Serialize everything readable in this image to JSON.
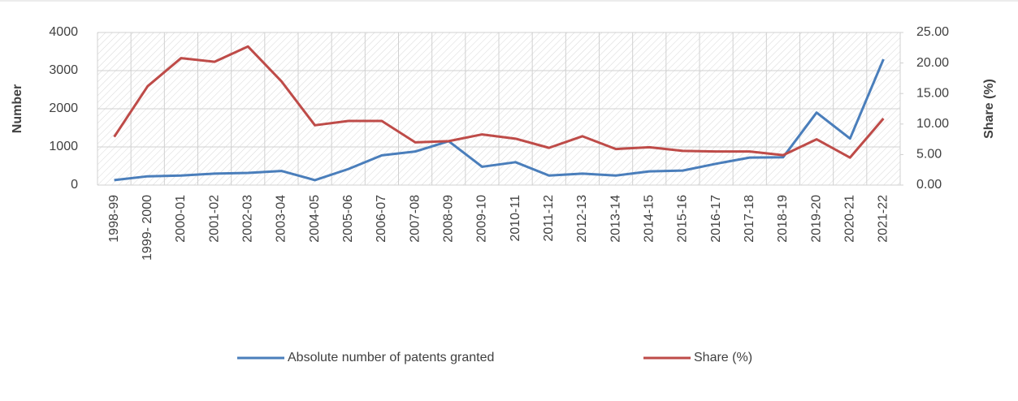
{
  "chart_data": {
    "type": "line",
    "categories": [
      "1998-99",
      "1999- 2000",
      "2000-01",
      "2001-02",
      "2002-03",
      "2003-04",
      "2004-05",
      "2005-06",
      "2006-07",
      "2007-08",
      "2008-09",
      "2009-10",
      "2010-11",
      "2011-12",
      "2012-13",
      "2013-14",
      "2014-15",
      "2015-16",
      "2016-17",
      "2017-18",
      "2018-19",
      "2019-20",
      "2020-21",
      "2021-22"
    ],
    "series": [
      {
        "name": "Absolute number of patents granted",
        "color": "#4a7ebb",
        "axis": "y",
        "values": [
          130,
          230,
          250,
          300,
          320,
          370,
          130,
          420,
          780,
          880,
          1150,
          480,
          600,
          250,
          300,
          250,
          360,
          380,
          560,
          720,
          730,
          1900,
          1220,
          3300
        ]
      },
      {
        "name": "Share (%)",
        "color": "#be4b48",
        "axis": "y2",
        "values": [
          7.9,
          16.2,
          20.8,
          20.2,
          22.7,
          17,
          9.8,
          10.5,
          10.5,
          7,
          7.2,
          8.3,
          7.6,
          6.1,
          8,
          5.9,
          6.2,
          5.6,
          5.5,
          5.5,
          4.9,
          7.5,
          4.5,
          10.9
        ]
      }
    ],
    "ylabel": "Number",
    "y2label": "Share (%)",
    "ylim": [
      0,
      4000
    ],
    "yticks": [
      0,
      1000,
      2000,
      3000,
      4000
    ],
    "y2lim": [
      0,
      25
    ],
    "y2ticks": [
      {
        "value": 0,
        "label": "0.00"
      },
      {
        "value": 5,
        "label": "5.00"
      },
      {
        "value": 10,
        "label": "10.00"
      },
      {
        "value": 15,
        "label": "15.00"
      },
      {
        "value": 20,
        "label": "20.00"
      },
      {
        "value": 25,
        "label": "25.00"
      }
    ],
    "grid": true,
    "legend": "bottom"
  }
}
